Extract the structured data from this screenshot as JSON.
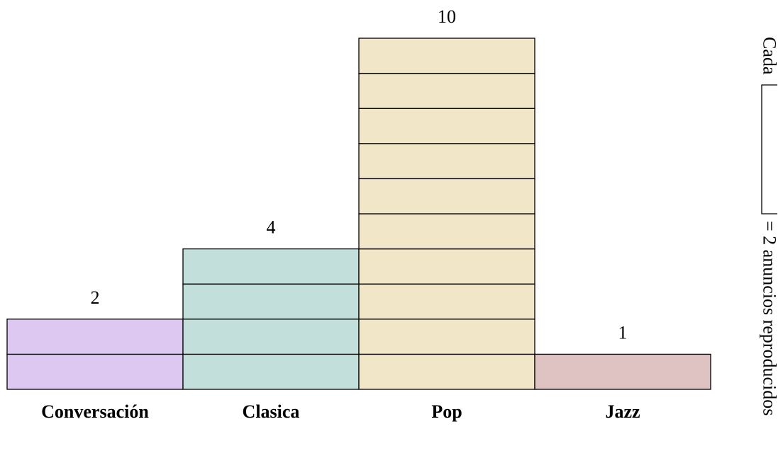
{
  "chart_data": {
    "type": "bar",
    "categories": [
      "Conversación",
      "Clasica",
      "Pop",
      "Jazz"
    ],
    "values": [
      2,
      4,
      10,
      1
    ],
    "colors": [
      "#dcc8f0",
      "#c2dfdb",
      "#f2e6c8",
      "#dfc3c3"
    ],
    "title": "",
    "xlabel": "",
    "ylabel": "",
    "ylim": [
      0,
      10
    ],
    "legend": {
      "prefix": "Cada",
      "suffix": "= 2 anuncios reproducidos",
      "placement": "right, rotated"
    }
  }
}
